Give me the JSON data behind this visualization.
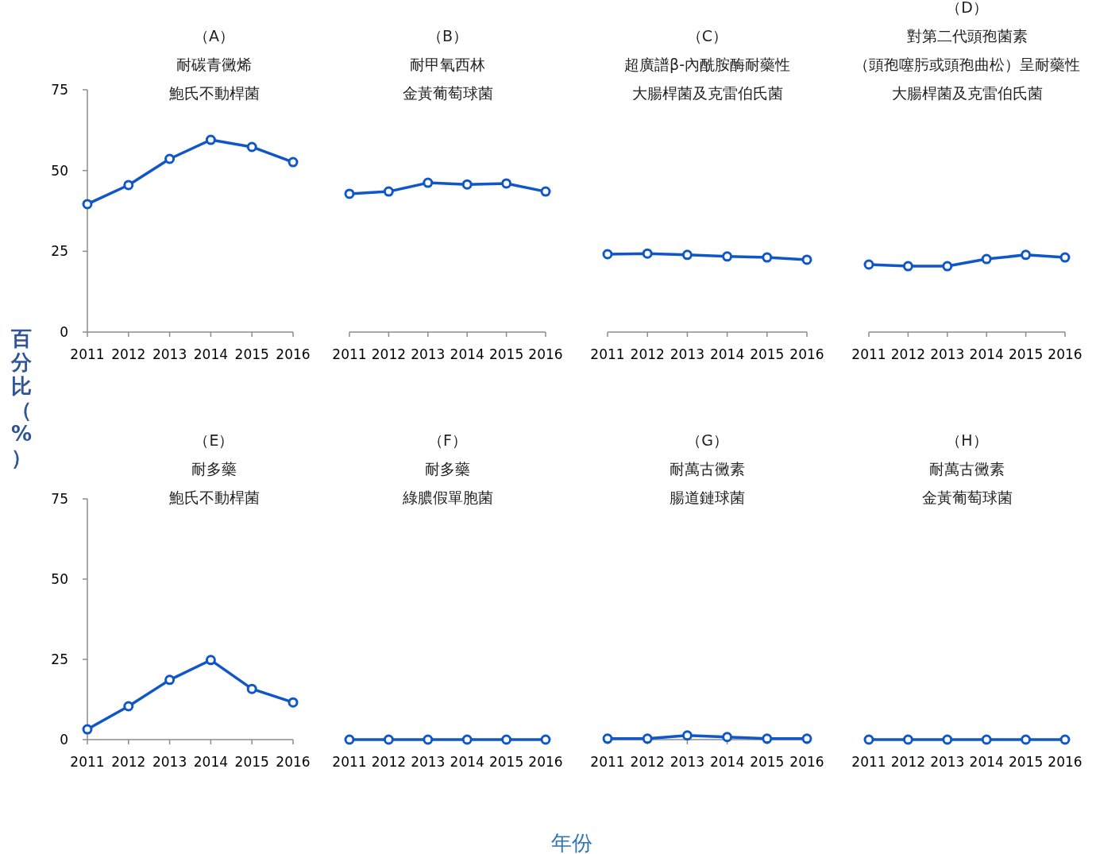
{
  "chart_data": [
    {
      "type": "line",
      "title": "（A）",
      "ylabel": "百分比（%）",
      "annotations": [
        "年份"
      ],
      "subtitle": [
        "耐碳青黴烯",
        "鮑氏不動桿菌"
      ],
      "categories": [
        "2011",
        "2012",
        "2013",
        "2014",
        "2015",
        "2016"
      ],
      "values": [
        39.6,
        45.5,
        53.6,
        59.5,
        57.3,
        52.6
      ],
      "color": "#0f57c9",
      "ylim": [
        0,
        75
      ],
      "yticks": [
        0,
        25,
        50,
        75
      ],
      "marker": "circle",
      "line_style": "solid"
    },
    {
      "type": "line",
      "title": "（B）",
      "subtitle": [
        "耐甲氧西林",
        "金黃葡萄球菌"
      ],
      "categories": [
        "2011",
        "2012",
        "2013",
        "2014",
        "2015",
        "2016"
      ],
      "values": [
        42.8,
        43.5,
        46.2,
        45.7,
        46.0,
        43.5
      ],
      "color": "#0f57c9",
      "ylim": [
        0,
        75
      ],
      "tick_labels": "x",
      "marker": "circle",
      "line_style": "solid"
    },
    {
      "type": "line",
      "title": "（C）",
      "subtitle": [
        "超廣譜β-內酰胺酶耐藥性",
        "大腸桿菌及克雷伯氏菌"
      ],
      "categories": [
        "2011",
        "2012",
        "2013",
        "2014",
        "2015",
        "2016"
      ],
      "values": [
        24.1,
        24.3,
        23.9,
        23.4,
        23.1,
        22.4
      ],
      "color": "#0f57c9",
      "ylim": [
        0,
        75
      ],
      "tick_labels": "x",
      "marker": "circle",
      "line_style": "solid"
    },
    {
      "type": "line",
      "title": "（D）",
      "subtitle": [
        "對第二代頭孢菌素",
        "（頭孢噻肟或頭孢曲松）呈耐藥性",
        "大腸桿菌及克雷伯氏菌"
      ],
      "categories": [
        "2011",
        "2012",
        "2013",
        "2014",
        "2015",
        "2016"
      ],
      "values": [
        20.9,
        20.4,
        20.4,
        22.6,
        23.9,
        23.1
      ],
      "color": "#0f57c9",
      "ylim": [
        0,
        75
      ],
      "tick_labels": "x",
      "marker": "circle",
      "line_style": "solid"
    },
    {
      "type": "line",
      "title": "（E）",
      "subtitle": [
        "耐多藥",
        "鮑氏不動桿菌"
      ],
      "categories": [
        "2011",
        "2012",
        "2013",
        "2014",
        "2015",
        "2016"
      ],
      "values": [
        3.2,
        10.4,
        18.6,
        24.8,
        15.8,
        11.6
      ],
      "color": "#0f57c9",
      "ylim": [
        0,
        75
      ],
      "yticks": [
        0,
        25,
        50,
        75
      ],
      "marker": "circle",
      "line_style": "solid"
    },
    {
      "type": "line",
      "title": "（F）",
      "subtitle": [
        "耐多藥",
        "綠膿假單胞菌"
      ],
      "categories": [
        "2011",
        "2012",
        "2013",
        "2014",
        "2015",
        "2016"
      ],
      "values": [
        0,
        0,
        0,
        0,
        0,
        0
      ],
      "color": "#0f57c9",
      "ylim": [
        0,
        75
      ],
      "tick_labels": "x",
      "marker": "circle",
      "line_style": "solid"
    },
    {
      "type": "line",
      "title": "（G）",
      "subtitle": [
        "耐萬古黴素",
        "腸道鏈球菌"
      ],
      "categories": [
        "2011",
        "2012",
        "2013",
        "2014",
        "2015",
        "2016"
      ],
      "values": [
        0.3,
        0.3,
        1.3,
        0.8,
        0.3,
        0.3
      ],
      "color": "#0f57c9",
      "ylim": [
        0,
        75
      ],
      "tick_labels": "x",
      "marker": "circle",
      "line_style": "solid"
    },
    {
      "type": "line",
      "title": "（H）",
      "subtitle": [
        "耐萬古黴素",
        "金黃葡萄球菌"
      ],
      "categories": [
        "2011",
        "2012",
        "2013",
        "2014",
        "2015",
        "2016"
      ],
      "values": [
        0,
        0,
        0,
        0,
        0,
        0
      ],
      "color": "#0f57c9",
      "ylim": [
        0,
        75
      ],
      "tick_labels": "x",
      "marker": "circle",
      "line_style": "solid"
    }
  ]
}
